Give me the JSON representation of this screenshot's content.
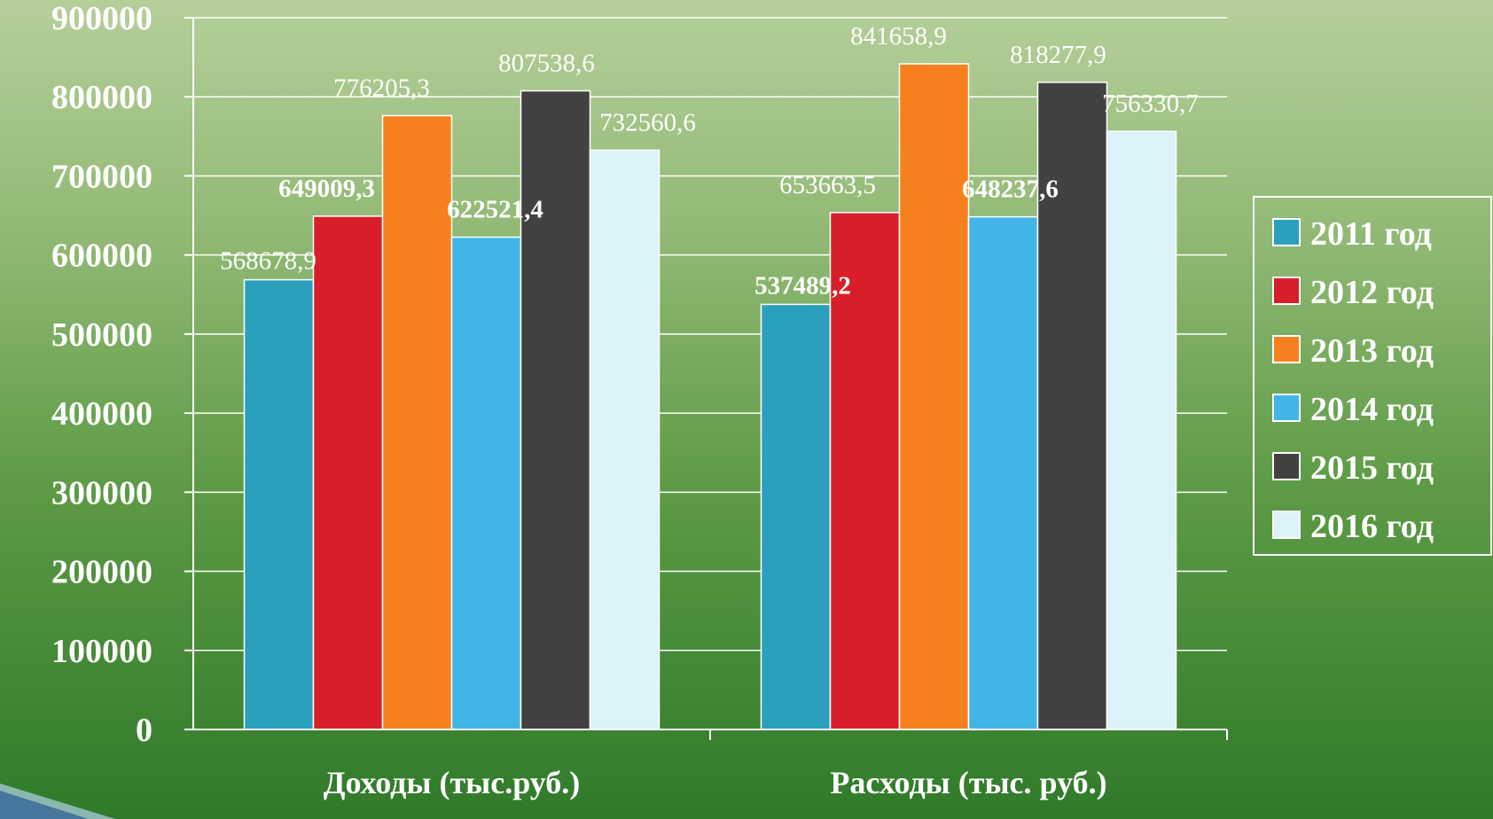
{
  "colors": {
    "2011 год": "#2aa0bd",
    "2012 год": "#d81f29",
    "2013 год": "#f7801e",
    "2014 год": "#41b6e6",
    "2015 год": "#414141",
    "2016 год": "#dcf3f9"
  },
  "chart_data": {
    "type": "bar",
    "title": "",
    "xlabel": "",
    "ylabel": "",
    "categories": [
      "Доходы (тыс.руб.)",
      "Расходы (тыс. руб.)"
    ],
    "ylim": [
      0,
      900000
    ],
    "yticks": [
      "0",
      "100000",
      "200000",
      "300000",
      "400000",
      "500000",
      "600000",
      "700000",
      "800000",
      "900000"
    ],
    "grid": true,
    "legend_position": "right",
    "series": [
      {
        "name": "2011 год",
        "values": [
          568678.9,
          537489.2
        ],
        "labels": [
          "568678,9",
          "537489,2"
        ]
      },
      {
        "name": "2012 год",
        "values": [
          649009.3,
          653663.5
        ],
        "labels": [
          "649009,3",
          "653663,5"
        ]
      },
      {
        "name": "2013 год",
        "values": [
          776205.3,
          841658.9
        ],
        "labels": [
          "776205,3",
          "841658,9"
        ]
      },
      {
        "name": "2014 год",
        "values": [
          622521.4,
          648237.6
        ],
        "labels": [
          "622521,4",
          "648237,6"
        ]
      },
      {
        "name": "2015 год",
        "values": [
          807538.6,
          818277.9
        ],
        "labels": [
          "807538,6",
          "818277,9"
        ]
      },
      {
        "name": "2016 год",
        "values": [
          732560.6,
          756330.7
        ],
        "labels": [
          "732560,6",
          "756330,7"
        ]
      }
    ]
  }
}
